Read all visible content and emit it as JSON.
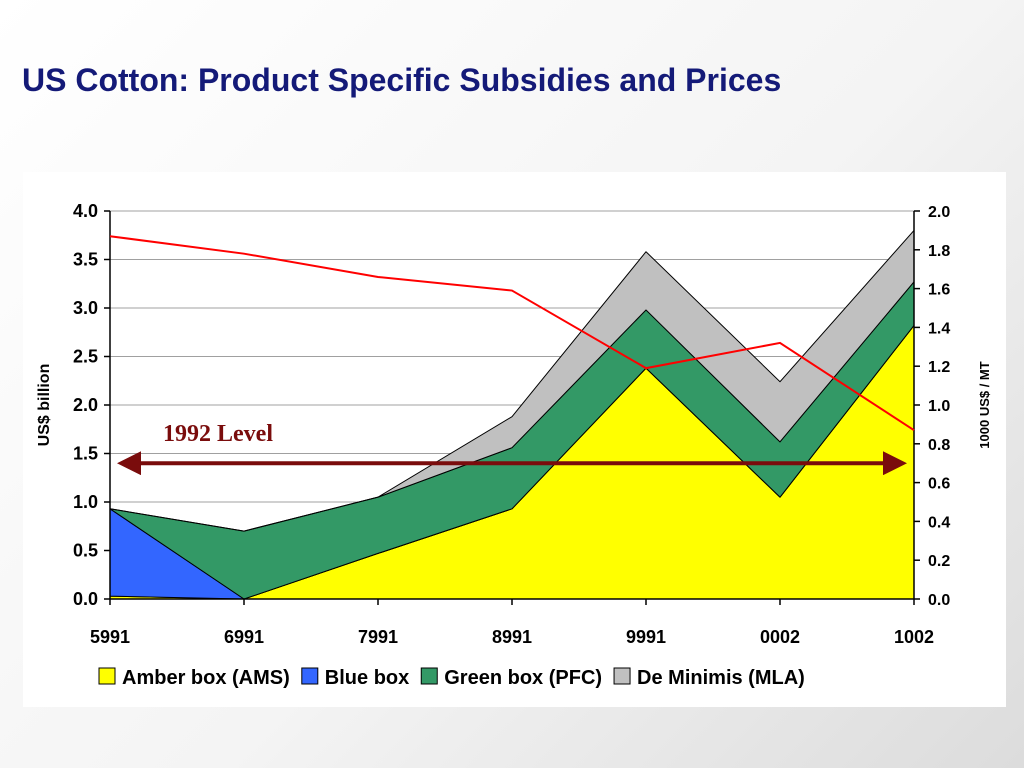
{
  "slide": {
    "title": "US Cotton: Product Specific Subsidies and Prices"
  },
  "chart_data": {
    "type": "area",
    "categories": [
      "5991",
      "6991",
      "7991",
      "8991",
      "9991",
      "0002",
      "1002"
    ],
    "series": [
      {
        "name": "Amber box (AMS)",
        "color": "#ffff00",
        "values": [
          0.03,
          0.0,
          0.47,
          0.93,
          2.38,
          1.05,
          2.82
        ]
      },
      {
        "name": "Blue box",
        "color": "#3366ff",
        "values": [
          0.9,
          0.0,
          0.0,
          0.0,
          0.0,
          0.0,
          0.0
        ]
      },
      {
        "name": "Green box (PFC)",
        "color": "#339966",
        "values": [
          0.0,
          0.7,
          0.58,
          0.63,
          0.6,
          0.57,
          0.45
        ]
      },
      {
        "name": "De Minimis (MLA)",
        "color": "#c0c0c0",
        "values": [
          0.0,
          0.0,
          0.0,
          0.32,
          0.6,
          0.62,
          0.53
        ]
      }
    ],
    "price_line": {
      "color": "#ff0000",
      "axis": "right",
      "values": [
        1.87,
        1.78,
        1.66,
        1.59,
        1.19,
        1.32,
        0.87
      ]
    },
    "y_left": {
      "label": "US$ billion",
      "ylim": [
        0,
        4
      ],
      "ticks": [
        "0.0",
        "0.5",
        "1.0",
        "1.5",
        "2.0",
        "2.5",
        "3.0",
        "3.5",
        "4.0"
      ]
    },
    "y_right": {
      "label": "1000 US$ / MT",
      "ylim": [
        0,
        2
      ],
      "ticks": [
        "0.0",
        "0.2",
        "0.4",
        "0.6",
        "0.8",
        "1.0",
        "1.2",
        "1.4",
        "1.6",
        "1.8",
        "2.0"
      ]
    },
    "reference": {
      "label": "1992 Level",
      "value": 1.4,
      "color": "#7a0c0c"
    },
    "legend": {
      "position": "bottom",
      "items": [
        "Amber box (AMS)",
        "Blue box",
        "Green box (PFC)",
        "De Minimis (MLA)"
      ]
    },
    "grid": true
  }
}
